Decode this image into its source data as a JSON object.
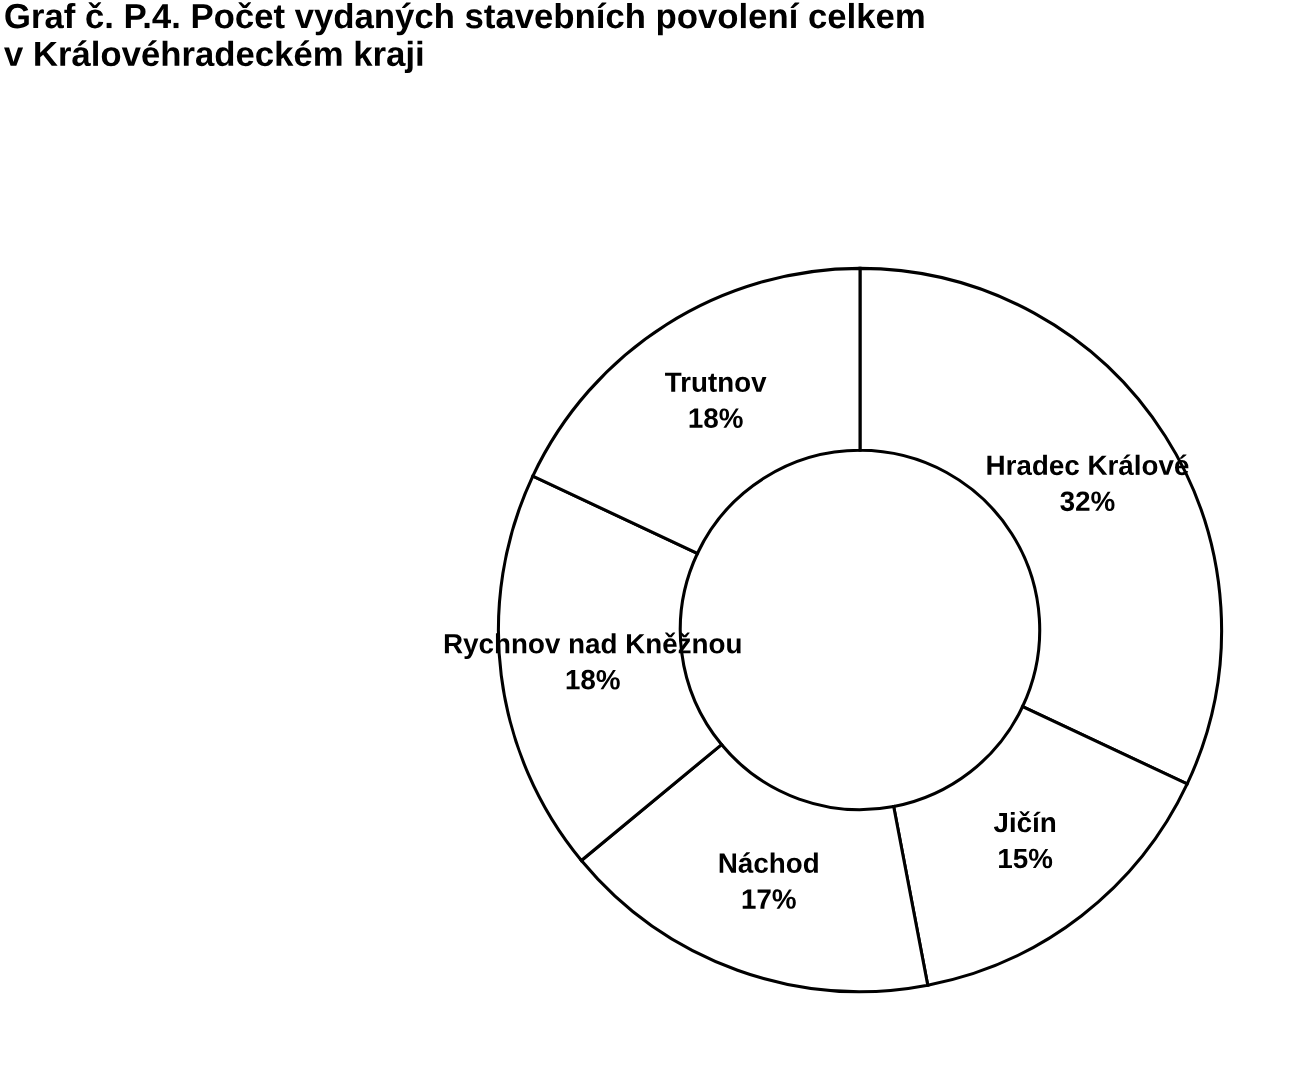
{
  "chart_data": {
    "type": "donut",
    "title": "Graf č. P.4. Počet vydaných stavebních povolení celkem\nv Královéhradeckém kraji",
    "categories": [
      "Hradec Králové",
      "Jičín",
      "Náchod",
      "Rychnov nad Kněžnou",
      "Trutnov"
    ],
    "values": [
      32,
      15,
      17,
      18,
      18
    ],
    "value_labels": [
      "32%",
      "15%",
      "17%",
      "18%",
      "18%"
    ],
    "colors": [
      "#ffffff",
      "#ffffff",
      "#ffffff",
      "#ffffff",
      "#ffffff"
    ],
    "legend": false
  }
}
